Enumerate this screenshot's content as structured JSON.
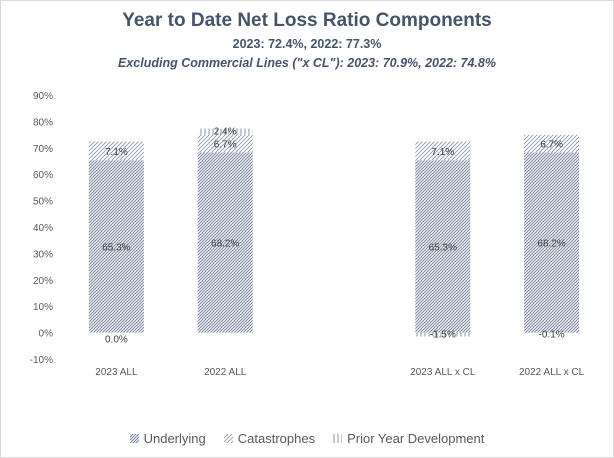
{
  "chart_data": {
    "type": "bar",
    "stacked": true,
    "title": "Year to Date Net Loss Ratio Components",
    "subtitle": "2023: 72.4%, 2022: 77.3%",
    "subtitle2": "Excluding Commercial Lines (\"x CL\"): 2023: 70.9%, 2022: 74.8%",
    "xlabel": "",
    "ylabel": "",
    "ylim": [
      -10,
      90
    ],
    "yticks": [
      "-10%",
      "0%",
      "10%",
      "20%",
      "30%",
      "40%",
      "50%",
      "60%",
      "70%",
      "80%",
      "90%"
    ],
    "ytick_values": [
      -10,
      0,
      10,
      20,
      30,
      40,
      50,
      60,
      70,
      80,
      90
    ],
    "categories": [
      "2023 ALL",
      "2022 ALL",
      "",
      "2023 ALL x CL",
      "2022 ALL x CL"
    ],
    "series": [
      {
        "name": "Underlying",
        "values": [
          65.3,
          68.2,
          null,
          65.3,
          68.2
        ],
        "labels": [
          "65.3%",
          "68.2%",
          "",
          "65.3%",
          "68.2%"
        ],
        "color": "#44546a"
      },
      {
        "name": "Catastrophes",
        "values": [
          7.1,
          6.7,
          null,
          7.1,
          6.7
        ],
        "labels": [
          "7.1%",
          "6.7%",
          "",
          "7.1%",
          "6.7%"
        ],
        "color": "#44546a"
      },
      {
        "name": "Prior Year Development",
        "values": [
          0.0,
          2.4,
          null,
          -1.5,
          -0.1
        ],
        "labels": [
          "0.0%",
          "2.4%",
          "",
          "-1.5%",
          "-0.1%"
        ],
        "color": "#44546a"
      }
    ],
    "grid": false,
    "legend_position": "bottom"
  }
}
